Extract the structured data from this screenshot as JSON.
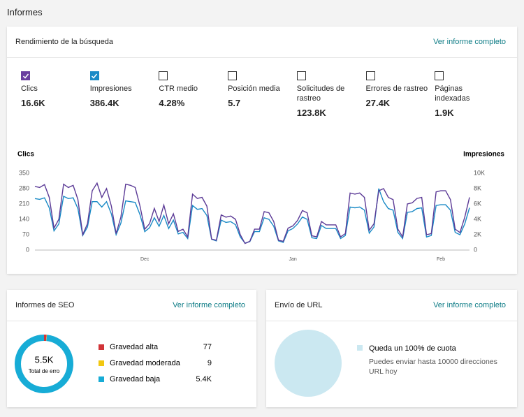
{
  "header": {
    "title": "Informes"
  },
  "performance": {
    "title": "Rendimiento de la búsqueda",
    "link": "Ver informe completo",
    "metrics": [
      {
        "label": [
          "Clics"
        ],
        "value": "16.6K",
        "checked": true,
        "color": "#6b3fa0"
      },
      {
        "label": [
          "Impresiones"
        ],
        "value": "386.4K",
        "checked": true,
        "color": "#1a8ac6"
      },
      {
        "label": [
          "CTR medio"
        ],
        "value": "4.28%",
        "checked": false
      },
      {
        "label": [
          "Posición media"
        ],
        "value": "5.7",
        "checked": false
      },
      {
        "label": [
          "Solicitudes de",
          "rastreo"
        ],
        "value": "123.8K",
        "checked": false
      },
      {
        "label": [
          "Errores de rastreo"
        ],
        "value": "27.4K",
        "checked": false
      },
      {
        "label": [
          "Páginas",
          "indexadas"
        ],
        "value": "1.9K",
        "checked": false
      }
    ]
  },
  "seo": {
    "title": "Informes de SEO",
    "link": "Ver informe completo"
  },
  "url": {
    "title": "Envío de URL",
    "link": "Ver informe completo"
  },
  "chart_data": [
    {
      "type": "line",
      "ylabel": "Clics",
      "y2label": "Impresiones",
      "categories": [
        null,
        null,
        null,
        null,
        null,
        null,
        null,
        null,
        null,
        null,
        null,
        null,
        null,
        null,
        null,
        null,
        null,
        null,
        null,
        null,
        null,
        null,
        null,
        "Dec",
        null,
        null,
        null,
        null,
        null,
        null,
        null,
        null,
        null,
        null,
        null,
        null,
        null,
        null,
        null,
        null,
        null,
        null,
        null,
        null,
        null,
        null,
        null,
        null,
        null,
        null,
        null,
        null,
        null,
        null,
        "Jan",
        null,
        null,
        null,
        null,
        null,
        null,
        null,
        null,
        null,
        null,
        null,
        null,
        null,
        null,
        null,
        null,
        null,
        null,
        null,
        null,
        null,
        null,
        null,
        null,
        null,
        null,
        null,
        null,
        null,
        null,
        "Feb",
        null,
        null,
        null,
        null,
        null,
        null
      ],
      "ylim": [
        0,
        350
      ],
      "yticks": [
        0,
        70,
        140,
        210,
        280,
        350
      ],
      "y2lim": [
        0,
        10000
      ],
      "y2ticks": [
        0,
        {
          "value": 2000,
          "label": "2K"
        },
        {
          "value": 4000,
          "label": "4K"
        },
        {
          "value": 6000,
          "label": "6K"
        },
        {
          "value": 8000,
          "label": "8K"
        },
        {
          "value": 10000,
          "label": "10K"
        }
      ],
      "series": [
        {
          "name": "Clics",
          "color": "#5b3a96",
          "values": [
            290,
            285,
            298,
            240,
            100,
            140,
            300,
            285,
            295,
            230,
            70,
            120,
            270,
            305,
            240,
            280,
            200,
            75,
            150,
            300,
            295,
            285,
            200,
            95,
            120,
            190,
            130,
            205,
            120,
            165,
            85,
            95,
            60,
            255,
            235,
            240,
            200,
            50,
            45,
            160,
            150,
            155,
            140,
            70,
            30,
            40,
            95,
            95,
            175,
            170,
            130,
            45,
            40,
            100,
            110,
            135,
            180,
            170,
            65,
            60,
            130,
            115,
            115,
            115,
            60,
            75,
            260,
            255,
            260,
            240,
            90,
            120,
            270,
            280,
            240,
            230,
            95,
            60,
            210,
            215,
            235,
            240,
            70,
            75,
            265,
            270,
            270,
            230,
            95,
            80,
            150,
            240
          ]
        },
        {
          "name": "Impresiones",
          "color": "#1a8ac6",
          "axis": "y2",
          "values": [
            6700,
            6600,
            6800,
            5500,
            2500,
            3400,
            7000,
            6700,
            6800,
            5400,
            1900,
            3000,
            6300,
            6300,
            5600,
            6300,
            4700,
            2000,
            3500,
            6400,
            6300,
            6200,
            4600,
            2400,
            2900,
            4200,
            3100,
            4500,
            2800,
            3900,
            2100,
            2300,
            1500,
            5800,
            5300,
            5400,
            4500,
            1400,
            1200,
            3900,
            3600,
            3700,
            3300,
            1700,
            900,
            1100,
            2400,
            2400,
            4200,
            4000,
            3100,
            1200,
            1000,
            2500,
            2800,
            3400,
            4300,
            4000,
            1600,
            1500,
            3200,
            2800,
            2800,
            2800,
            1500,
            1900,
            5600,
            5500,
            5600,
            5200,
            2200,
            3000,
            8000,
            6300,
            5400,
            5200,
            2300,
            1500,
            4900,
            5000,
            5400,
            5500,
            1700,
            1900,
            5800,
            5900,
            5900,
            5200,
            2300,
            2000,
            3400,
            5500
          ]
        }
      ]
    },
    {
      "type": "donut",
      "center_value": "5.5K",
      "center_label": "Total de erro",
      "categories": [
        "Gravedad alta",
        "Gravedad moderada",
        "Gravedad baja"
      ],
      "values": [
        77,
        9,
        5400
      ],
      "value_labels": [
        "77",
        "9",
        "5.4K"
      ],
      "colors": [
        "#d13438",
        "#f2c811",
        "#17acd6"
      ]
    },
    {
      "type": "pie",
      "categories": [
        "Queda un 100% de cuota"
      ],
      "values": [
        100
      ],
      "colors": [
        "#cbe8f1"
      ],
      "description": [
        "Puedes enviar hasta 10000 direcciones",
        "URL hoy"
      ]
    }
  ]
}
